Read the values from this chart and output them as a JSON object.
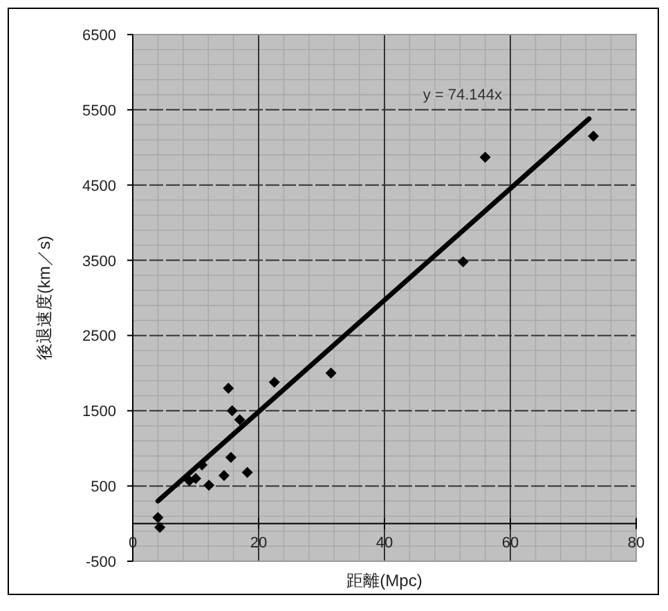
{
  "chart_data": {
    "type": "scatter",
    "xlabel": "距離(Mpc)",
    "ylabel": "後退速度(km／s)",
    "xlim": [
      0,
      80
    ],
    "ylim": [
      -500,
      6500
    ],
    "xticks": [
      0,
      20,
      40,
      60,
      80
    ],
    "yticks": [
      -500,
      500,
      1500,
      2500,
      3500,
      4500,
      5500,
      6500
    ],
    "grid": true,
    "marker": "diamond",
    "series": [
      {
        "type": "scatter",
        "color": "#000000",
        "x": [
          4,
          4.3,
          9,
          10,
          11,
          12.1,
          14.5,
          15.6,
          18.2,
          15.2,
          15.8,
          17,
          22.5,
          31.5,
          52.5,
          56,
          73.2
        ],
        "values": [
          80,
          -50,
          570,
          600,
          780,
          510,
          640,
          880,
          680,
          1800,
          1500,
          1380,
          1880,
          2000,
          3480,
          4870,
          5150
        ]
      },
      {
        "type": "line",
        "color": "#000000",
        "marker": "none",
        "x": [
          4,
          72.5
        ],
        "values": [
          300,
          5380
        ]
      }
    ],
    "annotations": [
      "y = 74.144x"
    ]
  }
}
